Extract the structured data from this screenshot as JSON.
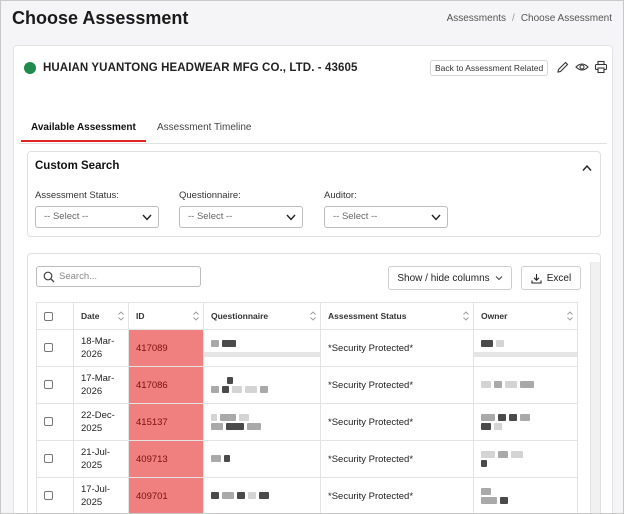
{
  "page": {
    "title": "Choose Assessment"
  },
  "breadcrumb": {
    "items": [
      "Assessments",
      "Choose Assessment"
    ],
    "separator": "/"
  },
  "company": {
    "name": "HUAIAN YUANTONG HEADWEAR MFG CO., LTD. - 43605",
    "status_color": "#1e8a4c"
  },
  "header_actions": {
    "back_label": "Back to Assessment Related",
    "icons": [
      "edit-icon",
      "eye-icon",
      "print-icon"
    ]
  },
  "tabs": [
    {
      "label": "Available Assessment",
      "active": true
    },
    {
      "label": "Assessment Timeline",
      "active": false
    }
  ],
  "custom_search": {
    "title": "Custom Search",
    "filters": [
      {
        "label": "Assessment Status:",
        "value": "-- Select --"
      },
      {
        "label": "Questionnaire:",
        "value": "-- Select --"
      },
      {
        "label": "Auditor:",
        "value": "-- Select --"
      }
    ]
  },
  "table_tools": {
    "search_placeholder": "Search...",
    "columns_label": "Show / hide columns",
    "excel_label": "Excel"
  },
  "table": {
    "columns": [
      "Date",
      "ID",
      "Questionnaire",
      "Assessment Status",
      "Owner"
    ],
    "id_highlight_color": "#f08080",
    "rows": [
      {
        "date": "18-Mar-2026",
        "id": "417089",
        "status": "*Security Protected*"
      },
      {
        "date": "17-Mar-2026",
        "id": "417086",
        "status": "*Security Protected*"
      },
      {
        "date": "22-Dec-2025",
        "id": "415137",
        "status": "*Security Protected*"
      },
      {
        "date": "21-Jul-2025",
        "id": "409713",
        "status": "*Security Protected*"
      },
      {
        "date": "17-Jul-2025",
        "id": "409701",
        "status": "*Security Protected*"
      }
    ]
  }
}
